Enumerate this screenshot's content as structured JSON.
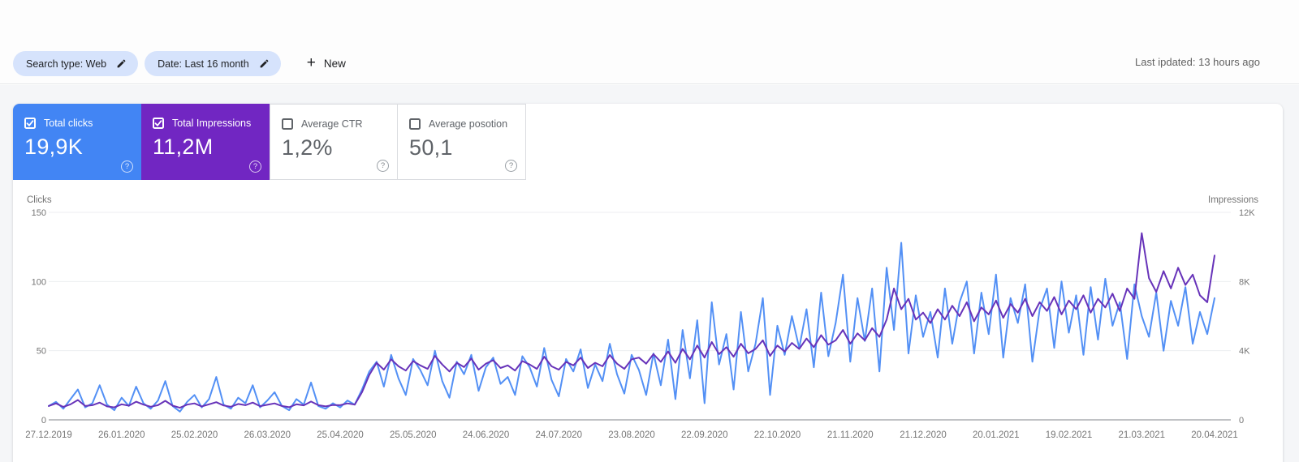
{
  "header": {
    "chips": [
      {
        "label": "Search type: Web"
      },
      {
        "label": "Date: Last 16 month"
      }
    ],
    "new_button_label": "New",
    "last_updated": "Last ipdated: 13 hours ago"
  },
  "icons": {
    "help": "?",
    "plus": "+",
    "pencil": "edit-pencil",
    "checkbox_checked": "check",
    "checkbox_unchecked": "empty"
  },
  "metrics": [
    {
      "label": "Total clicks",
      "value": "19,9K",
      "checked": true,
      "color": "#4285f4"
    },
    {
      "label": "Total Impressions",
      "value": "11,2M",
      "checked": true,
      "color": "#7126c2"
    },
    {
      "label": "Average CTR",
      "value": "1,2%",
      "checked": false,
      "color": "#ffffff"
    },
    {
      "label": "Average posotion",
      "value": "50,1",
      "checked": false,
      "color": "#ffffff"
    }
  ],
  "chart_data": {
    "type": "line",
    "title": "Search performance over time",
    "grid": true,
    "legend": "none",
    "x_total_days": 480,
    "x_step_days": 3,
    "x_tick_interval_days": 30,
    "x_tick_labels": [
      "27.12.2019",
      "26.01.2020",
      "25.02.2020",
      "26.03.2020",
      "25.04.2020",
      "25.05.2020",
      "24.06.2020",
      "24.07.2020",
      "23.08.2020",
      "22.09.2020",
      "22.10.2020",
      "21.11.2020",
      "21.12.2020",
      "20.01.2021",
      "19.02.2021",
      "21.03.2021",
      "20.04.2021"
    ],
    "left_axis": {
      "label": "Clicks",
      "ticks": [
        0,
        50,
        100,
        150
      ],
      "tick_labels": [
        "0",
        "50",
        "100",
        "150"
      ],
      "max": 150
    },
    "right_axis": {
      "label": "Impressions",
      "ticks": [
        0,
        4000,
        8000,
        12000
      ],
      "tick_labels": [
        "0",
        "4K",
        "8K",
        "12K"
      ],
      "max": 12000
    },
    "colors": {
      "grid": "#eceef0",
      "zero_line": "#80868b",
      "axis_text": "#757575"
    },
    "series": [
      {
        "name": "Clicks",
        "axis": "left",
        "color": "#5390f5",
        "values": [
          10,
          13,
          8,
          15,
          22,
          9,
          12,
          25,
          11,
          7,
          16,
          10,
          24,
          12,
          8,
          14,
          28,
          10,
          6,
          13,
          18,
          9,
          15,
          31,
          11,
          8,
          16,
          12,
          25,
          9,
          14,
          20,
          10,
          7,
          15,
          11,
          27,
          10,
          8,
          12,
          9,
          14,
          11,
          22,
          35,
          42,
          24,
          47,
          30,
          18,
          44,
          36,
          25,
          50,
          28,
          16,
          42,
          33,
          47,
          21,
          38,
          45,
          26,
          31,
          18,
          46,
          38,
          24,
          52,
          29,
          17,
          44,
          35,
          51,
          23,
          40,
          28,
          55,
          33,
          19,
          47,
          36,
          18,
          48,
          25,
          58,
          15,
          65,
          30,
          72,
          12,
          85,
          40,
          62,
          22,
          78,
          35,
          55,
          88,
          18,
          68,
          47,
          75,
          52,
          80,
          38,
          92,
          46,
          70,
          105,
          42,
          88,
          57,
          95,
          35,
          110,
          65,
          128,
          48,
          90,
          60,
          78,
          45,
          95,
          55,
          85,
          100,
          48,
          92,
          62,
          105,
          45,
          88,
          70,
          98,
          42,
          80,
          95,
          52,
          100,
          63,
          90,
          47,
          96,
          58,
          102,
          68,
          85,
          44,
          98,
          75,
          60,
          92,
          50,
          86,
          68,
          96,
          55,
          78,
          62,
          88
        ]
      },
      {
        "name": "Impressions",
        "axis": "right",
        "color": "#6733b9",
        "values": [
          800,
          950,
          750,
          900,
          1150,
          800,
          850,
          1000,
          780,
          720,
          900,
          820,
          1050,
          880,
          760,
          850,
          1100,
          820,
          700,
          880,
          950,
          780,
          900,
          1020,
          830,
          760,
          920,
          850,
          1000,
          790,
          870,
          950,
          800,
          730,
          900,
          840,
          1060,
          850,
          780,
          860,
          850,
          950,
          880,
          1600,
          2600,
          3300,
          2900,
          3500,
          3100,
          2850,
          3400,
          3150,
          2950,
          3700,
          3200,
          2800,
          3300,
          3050,
          3550,
          2900,
          3250,
          3450,
          3000,
          3150,
          2850,
          3400,
          3200,
          2950,
          3650,
          3100,
          2900,
          3350,
          3150,
          3600,
          3000,
          3300,
          3100,
          3750,
          3250,
          2950,
          3500,
          3600,
          3250,
          3800,
          3350,
          3950,
          3300,
          4100,
          3500,
          4300,
          3600,
          4500,
          3800,
          4200,
          3650,
          4400,
          3850,
          4100,
          4600,
          3700,
          4300,
          3950,
          4450,
          4100,
          4700,
          4200,
          4900,
          4350,
          4600,
          5200,
          4400,
          5000,
          4600,
          5300,
          4800,
          5800,
          7600,
          6400,
          7000,
          5800,
          6200,
          5600,
          6400,
          5800,
          6600,
          6000,
          6800,
          5700,
          6500,
          6100,
          6900,
          5900,
          6700,
          6200,
          7000,
          6000,
          6800,
          6300,
          7100,
          6100,
          6900,
          6400,
          7200,
          6200,
          7000,
          6500,
          7300,
          6300,
          7600,
          7000,
          10800,
          8200,
          7400,
          8600,
          7600,
          8800,
          7800,
          8400,
          7200,
          6800,
          9500
        ]
      }
    ]
  }
}
